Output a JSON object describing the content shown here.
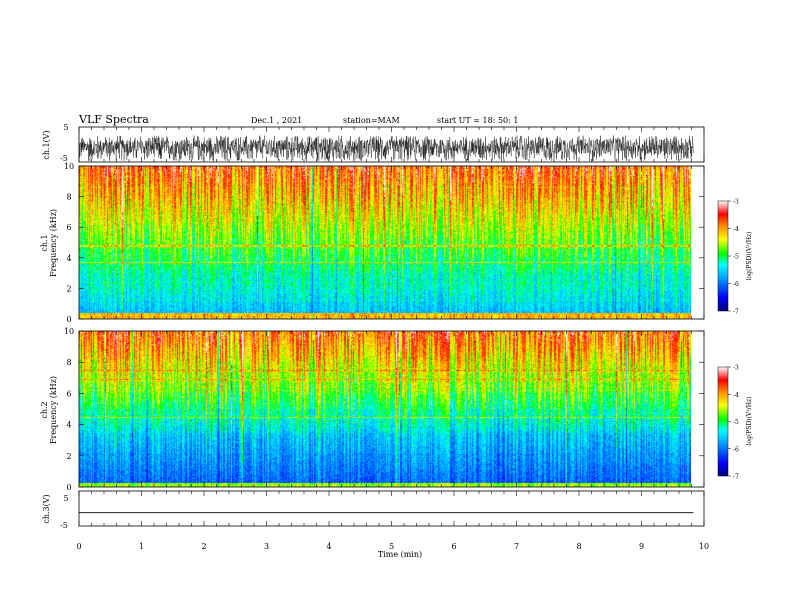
{
  "header": {
    "title": "VLF Spectra",
    "date": "Dec.1 , 2021",
    "station": "station=MAM",
    "start": "start UT = 18: 50: 1"
  },
  "chart_data": [
    {
      "type": "line",
      "name": "ch1-waveform",
      "ylabel": "ch.1(V)",
      "ylim": [
        -5,
        5
      ],
      "ytick_labels": [
        "5",
        "-5"
      ],
      "x_range": [
        0,
        9.83
      ],
      "amplitude_range": [
        -4.8,
        2.6
      ]
    },
    {
      "type": "heatmap",
      "name": "ch1-spectrogram",
      "ylabel_line1": "ch.1",
      "ylabel_line2": "Frequency (kHz)",
      "ylim": [
        0,
        10
      ],
      "ytick_labels": [
        "0",
        "2",
        "4",
        "6",
        "8",
        "10"
      ],
      "x_range": [
        0,
        9.83
      ],
      "colorbar": {
        "label": "log(PSD)(V²/Hz)",
        "range": [
          -7,
          -3
        ],
        "tick_labels": [
          "-3",
          "-4",
          "-5",
          "-6",
          "-7"
        ]
      }
    },
    {
      "type": "heatmap",
      "name": "ch2-spectrogram",
      "ylabel_line1": "ch.2",
      "ylabel_line2": "Frequency (kHz)",
      "ylim": [
        0,
        10
      ],
      "ytick_labels": [
        "0",
        "2",
        "4",
        "6",
        "8",
        "10"
      ],
      "x_range": [
        0,
        9.83
      ],
      "colorbar": {
        "label": "log(PSD)(V²/Hz)",
        "range": [
          -7,
          -3
        ],
        "tick_labels": [
          "-3",
          "-4",
          "-5",
          "-6",
          "-7"
        ]
      }
    },
    {
      "type": "line",
      "name": "ch3-waveform",
      "ylabel": "ch.3(V)",
      "ylim": [
        -5,
        5
      ],
      "ytick_labels": [
        "5",
        "-5"
      ],
      "x_range": [
        0,
        9.83
      ],
      "level": -1.2
    }
  ],
  "xaxis": {
    "label": "Time (min)",
    "xlim": [
      0,
      10
    ],
    "tick_labels": [
      "0",
      "1",
      "2",
      "3",
      "4",
      "5",
      "6",
      "7",
      "8",
      "9",
      "10"
    ]
  },
  "colors": {
    "axes": "#000000",
    "colormap": [
      "#000080",
      "#0000ff",
      "#00a0ff",
      "#00ffff",
      "#00ff00",
      "#ffff00",
      "#ff8000",
      "#ff0000",
      "#ffffff"
    ]
  }
}
